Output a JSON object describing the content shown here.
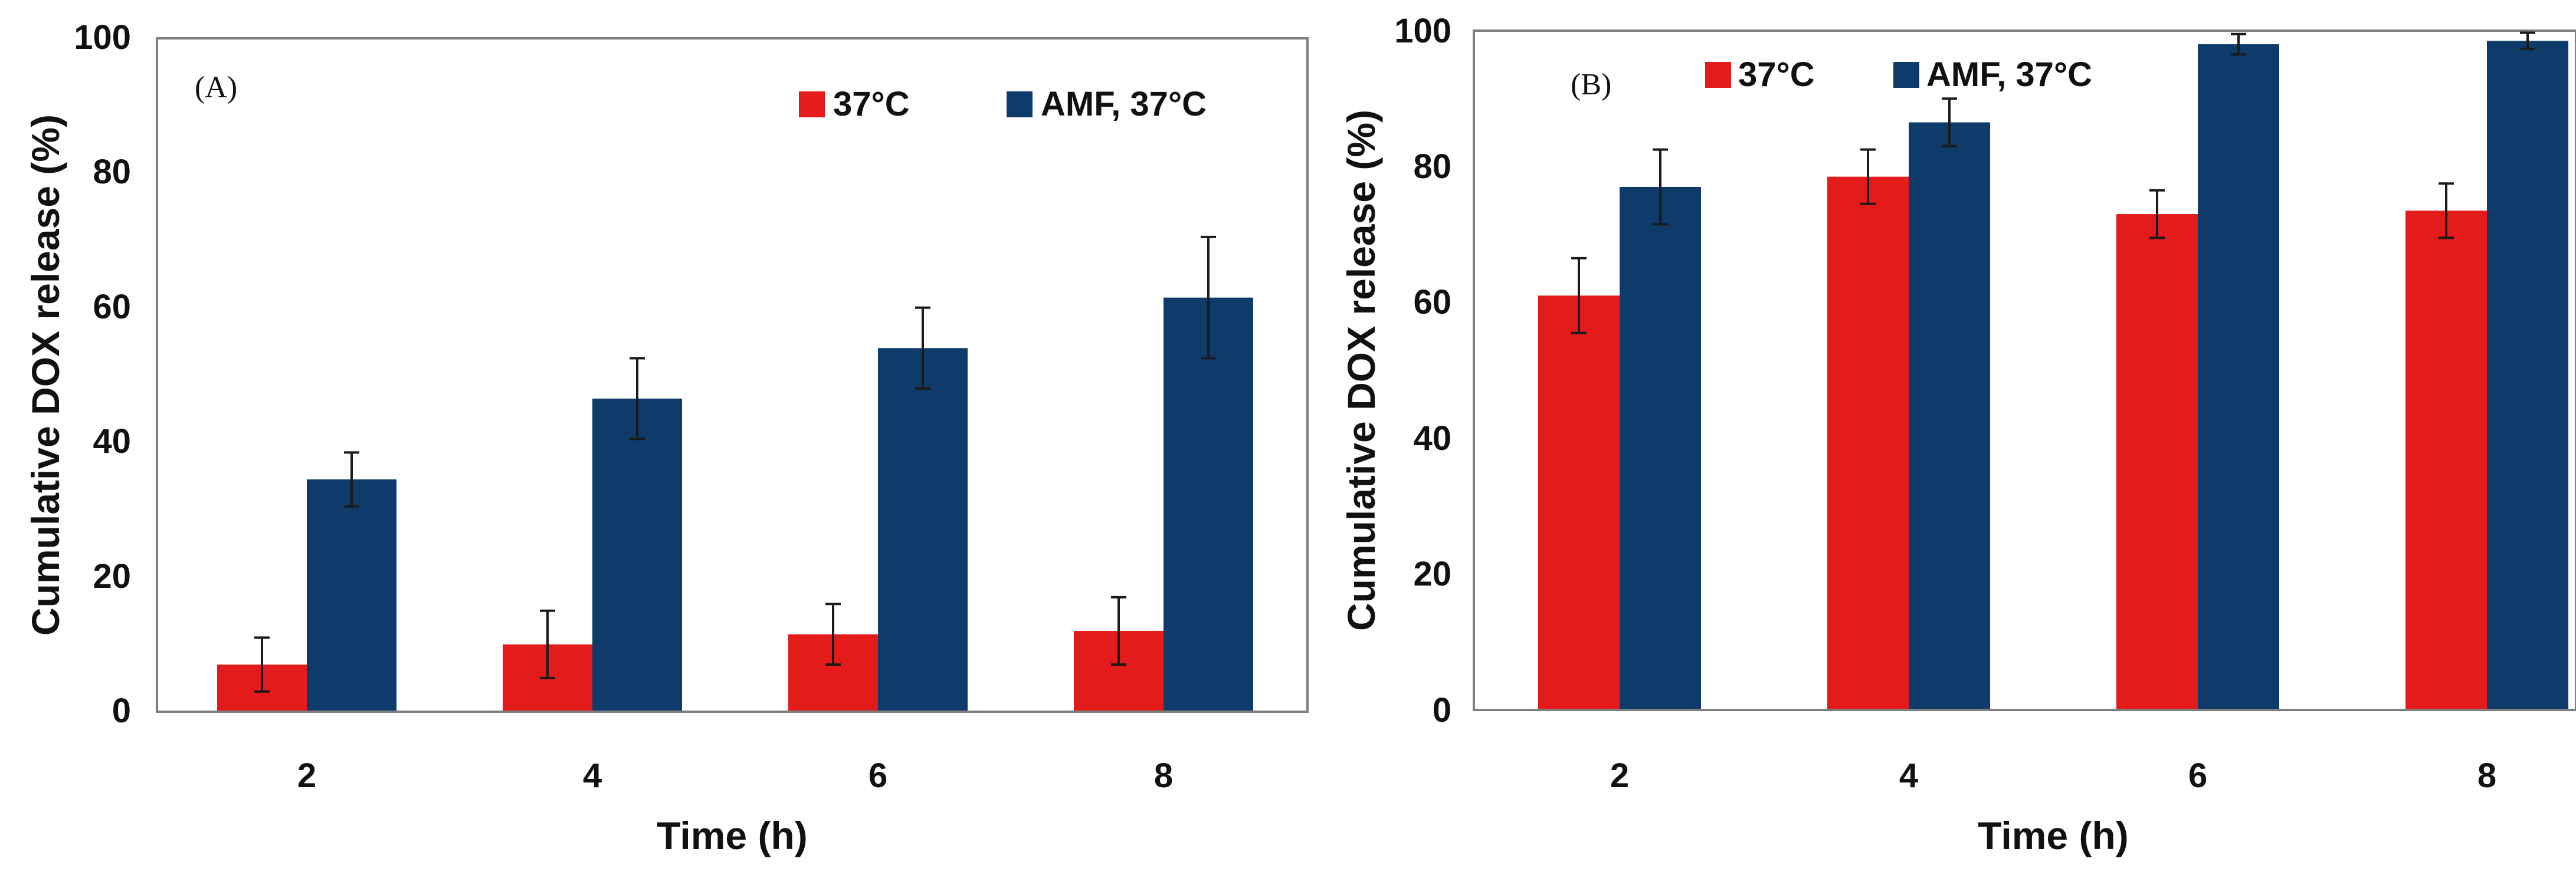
{
  "colors": {
    "series_37": "#e31b1b",
    "series_amf": "#0f3b6a",
    "axis": "#7f7f7f",
    "text": "#111111"
  },
  "chart_data": [
    {
      "type": "bar",
      "panel_label": "(A)",
      "categories": [
        "2",
        "4",
        "6",
        "8"
      ],
      "series": [
        {
          "name": "37°C",
          "values": [
            7,
            10,
            11.5,
            12
          ],
          "errors": [
            4,
            5,
            4.5,
            5
          ]
        },
        {
          "name": "AMF, 37°C",
          "values": [
            34.5,
            46.5,
            54,
            61.5
          ],
          "errors": [
            4,
            6,
            6,
            9
          ]
        }
      ],
      "xlabel": "Time (h)",
      "ylabel": "Cumulative DOX release (%)",
      "ylim": [
        0,
        100
      ],
      "yticks": [
        "0",
        "20",
        "40",
        "60",
        "80",
        "100"
      ],
      "legend_position": "top-right"
    },
    {
      "type": "bar",
      "panel_label": "(B)",
      "categories": [
        "2",
        "4",
        "6",
        "8"
      ],
      "series": [
        {
          "name": "37°C",
          "values": [
            61,
            78.5,
            73,
            73.5
          ],
          "errors": [
            5.5,
            4,
            3.5,
            4
          ]
        },
        {
          "name": "AMF, 37°C",
          "values": [
            77,
            86.5,
            98,
            98.5
          ],
          "errors": [
            5.5,
            3.5,
            1.5,
            1.2
          ]
        }
      ],
      "xlabel": "Time (h)",
      "ylabel": "Cumulative DOX release (%)",
      "ylim": [
        0,
        100
      ],
      "yticks": [
        "0",
        "20",
        "40",
        "60",
        "80",
        "100"
      ],
      "legend_position": "top"
    }
  ]
}
